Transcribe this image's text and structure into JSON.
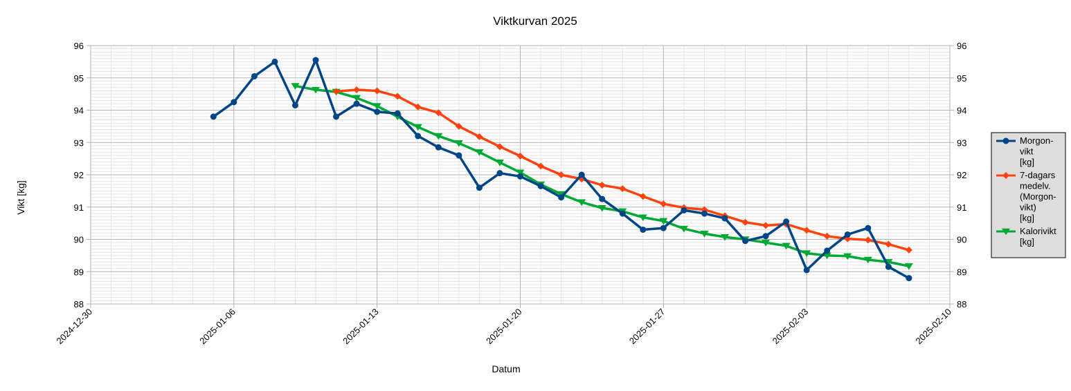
{
  "chart_data": {
    "type": "line",
    "title": "Viktkurvan 2025",
    "xlabel": "Datum",
    "ylabel": "Vikt [kg]",
    "x_range": [
      "2024-12-30",
      "2025-02-10"
    ],
    "x_ticks": [
      "2024-12-30",
      "2025-01-06",
      "2025-01-13",
      "2025-01-20",
      "2025-01-27",
      "2025-02-03",
      "2025-02-10"
    ],
    "ylim": [
      88,
      96
    ],
    "y_ticks": [
      88,
      89,
      90,
      91,
      92,
      93,
      94,
      95,
      96
    ],
    "y_ticks_right": true,
    "grid": true,
    "minor_grid": true,
    "legend_position": "right",
    "series": [
      {
        "name": "Morgon-vikt [kg]",
        "legend_lines": [
          "Morgon-",
          "vikt",
          "[kg]"
        ],
        "color": "#004586",
        "marker": "circle",
        "x": [
          "2025-01-05",
          "2025-01-06",
          "2025-01-07",
          "2025-01-08",
          "2025-01-09",
          "2025-01-10",
          "2025-01-11",
          "2025-01-12",
          "2025-01-13",
          "2025-01-14",
          "2025-01-15",
          "2025-01-16",
          "2025-01-17",
          "2025-01-18",
          "2025-01-19",
          "2025-01-20",
          "2025-01-21",
          "2025-01-22",
          "2025-01-23",
          "2025-01-24",
          "2025-01-25",
          "2025-01-26",
          "2025-01-27",
          "2025-01-28",
          "2025-01-29",
          "2025-01-30",
          "2025-01-31",
          "2025-02-01",
          "2025-02-02",
          "2025-02-03",
          "2025-02-04",
          "2025-02-05",
          "2025-02-06",
          "2025-02-07",
          "2025-02-08"
        ],
        "values": [
          93.8,
          94.25,
          95.05,
          95.5,
          94.15,
          95.55,
          93.8,
          94.2,
          93.95,
          93.9,
          93.2,
          92.85,
          92.6,
          91.6,
          92.05,
          91.95,
          91.65,
          91.3,
          92.0,
          91.25,
          90.8,
          90.3,
          90.35,
          90.9,
          90.8,
          90.65,
          89.95,
          90.1,
          90.55,
          89.05,
          89.65,
          90.15,
          90.35,
          89.15,
          88.8
        ]
      },
      {
        "name": "7-dagars medelv. (Morgon-vikt) [kg]",
        "legend_lines": [
          "7-dagars",
          "medelv.",
          "(Morgon-",
          "vikt)",
          "[kg]"
        ],
        "color": "#ff420e",
        "marker": "diamond",
        "x": [
          "2025-01-11",
          "2025-01-12",
          "2025-01-13",
          "2025-01-14",
          "2025-01-15",
          "2025-01-16",
          "2025-01-17",
          "2025-01-18",
          "2025-01-19",
          "2025-01-20",
          "2025-01-21",
          "2025-01-22",
          "2025-01-23",
          "2025-01-24",
          "2025-01-25",
          "2025-01-26",
          "2025-01-27",
          "2025-01-28",
          "2025-01-29",
          "2025-01-30",
          "2025-01-31",
          "2025-02-01",
          "2025-02-02",
          "2025-02-03",
          "2025-02-04",
          "2025-02-05",
          "2025-02-06",
          "2025-02-07",
          "2025-02-08"
        ],
        "values": [
          94.58,
          94.63,
          94.6,
          94.43,
          94.1,
          93.92,
          93.5,
          93.18,
          92.87,
          92.58,
          92.27,
          92.0,
          91.87,
          91.68,
          91.57,
          91.33,
          91.1,
          90.98,
          90.92,
          90.73,
          90.53,
          90.43,
          90.47,
          90.28,
          90.1,
          90.02,
          89.98,
          89.85,
          89.67
        ]
      },
      {
        "name": "Kalorivikt [kg]",
        "legend_lines": [
          "Kalorivikt",
          "[kg]"
        ],
        "color": "#00a933",
        "marker": "triangle-down",
        "x": [
          "2025-01-09",
          "2025-01-10",
          "2025-01-11",
          "2025-01-12",
          "2025-01-13",
          "2025-01-14",
          "2025-01-15",
          "2025-01-16",
          "2025-01-17",
          "2025-01-18",
          "2025-01-19",
          "2025-01-20",
          "2025-01-21",
          "2025-01-22",
          "2025-01-23",
          "2025-01-24",
          "2025-01-25",
          "2025-01-26",
          "2025-01-27",
          "2025-01-28",
          "2025-01-29",
          "2025-01-30",
          "2025-01-31",
          "2025-02-01",
          "2025-02-02",
          "2025-02-03",
          "2025-02-04",
          "2025-02-05",
          "2025-02-06",
          "2025-02-07",
          "2025-02-08"
        ],
        "values": [
          94.75,
          94.63,
          94.57,
          94.38,
          94.13,
          93.8,
          93.48,
          93.2,
          92.98,
          92.7,
          92.38,
          92.07,
          91.7,
          91.4,
          91.15,
          90.97,
          90.87,
          90.68,
          90.57,
          90.33,
          90.18,
          90.07,
          90.0,
          89.9,
          89.8,
          89.57,
          89.5,
          89.48,
          89.37,
          89.3,
          89.17
        ]
      }
    ]
  }
}
